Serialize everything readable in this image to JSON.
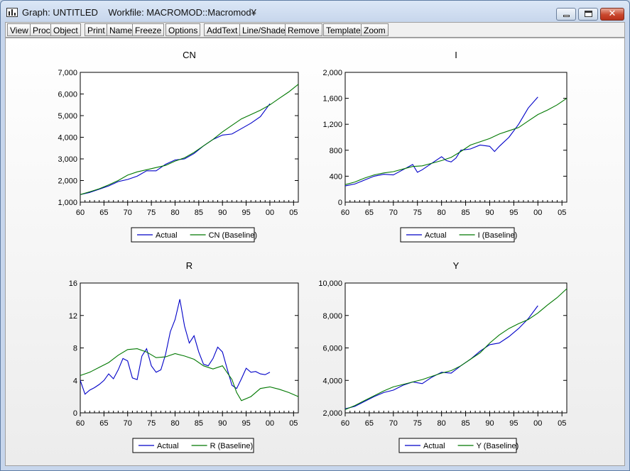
{
  "window": {
    "title": "Graph: UNTITLED    Workfile: MACROMOD::Macromod¥"
  },
  "toolbar": {
    "buttons": [
      "View",
      "Proc",
      "Object",
      "Print",
      "Name",
      "Freeze",
      "Options",
      "AddText",
      "Line/Shade",
      "Remove",
      "Template",
      "Zoom"
    ]
  },
  "colors": {
    "actual": "#0000c8",
    "baseline": "#007800"
  },
  "chart_data": [
    {
      "type": "line",
      "title": "CN",
      "ylim": [
        1000,
        7000
      ],
      "yticks": [
        "1,000",
        "2,000",
        "3,000",
        "4,000",
        "5,000",
        "6,000",
        "7,000"
      ],
      "xlim": [
        1960,
        2006
      ],
      "xticks": [
        "60",
        "65",
        "70",
        "75",
        "80",
        "85",
        "90",
        "95",
        "00",
        "05"
      ],
      "legend_position": "bottom",
      "grid": false,
      "series": [
        {
          "name": "Actual",
          "x": [
            1960,
            1962,
            1964,
            1966,
            1968,
            1970,
            1972,
            1974,
            1976,
            1978,
            1980,
            1982,
            1984,
            1986,
            1988,
            1990,
            1992,
            1994,
            1996,
            1998,
            2000
          ],
          "y": [
            1350,
            1450,
            1600,
            1750,
            1950,
            2050,
            2200,
            2450,
            2450,
            2750,
            2950,
            3000,
            3250,
            3600,
            3900,
            4100,
            4150,
            4400,
            4650,
            4950,
            5550
          ]
        },
        {
          "name": "CN (Baseline)",
          "x": [
            1960,
            1962,
            1964,
            1966,
            1968,
            1970,
            1972,
            1974,
            1976,
            1978,
            1980,
            1982,
            1984,
            1986,
            1988,
            1990,
            1992,
            1994,
            1996,
            1998,
            2000,
            2002,
            2004,
            2006
          ],
          "y": [
            1350,
            1480,
            1620,
            1800,
            2000,
            2250,
            2400,
            2500,
            2600,
            2700,
            2900,
            3050,
            3300,
            3600,
            3900,
            4250,
            4550,
            4850,
            5050,
            5250,
            5500,
            5800,
            6100,
            6450
          ]
        }
      ]
    },
    {
      "type": "line",
      "title": "I",
      "ylim": [
        0,
        2000
      ],
      "yticks": [
        "0",
        "400",
        "800",
        "1,200",
        "1,600",
        "2,000"
      ],
      "xlim": [
        1960,
        2006
      ],
      "xticks": [
        "60",
        "65",
        "70",
        "75",
        "80",
        "85",
        "90",
        "95",
        "00",
        "05"
      ],
      "legend_position": "bottom",
      "grid": false,
      "series": [
        {
          "name": "Actual",
          "x": [
            1960,
            1962,
            1964,
            1966,
            1968,
            1970,
            1972,
            1974,
            1975,
            1976,
            1978,
            1980,
            1981,
            1982,
            1983,
            1984,
            1986,
            1988,
            1990,
            1991,
            1992,
            1994,
            1996,
            1998,
            2000
          ],
          "y": [
            250,
            280,
            340,
            400,
            430,
            420,
            500,
            580,
            460,
            500,
            600,
            700,
            640,
            620,
            680,
            800,
            820,
            880,
            860,
            780,
            860,
            1000,
            1200,
            1450,
            1620
          ]
        },
        {
          "name": "I (Baseline)",
          "x": [
            1960,
            1962,
            1964,
            1966,
            1968,
            1970,
            1972,
            1974,
            1976,
            1978,
            1980,
            1982,
            1984,
            1986,
            1988,
            1990,
            1992,
            1994,
            1996,
            1998,
            2000,
            2002,
            2004,
            2006
          ],
          "y": [
            270,
            310,
            370,
            420,
            450,
            470,
            510,
            550,
            560,
            600,
            640,
            690,
            780,
            880,
            930,
            980,
            1050,
            1100,
            1150,
            1250,
            1350,
            1420,
            1500,
            1600
          ]
        }
      ]
    },
    {
      "type": "line",
      "title": "R",
      "ylim": [
        0,
        16
      ],
      "yticks": [
        "0",
        "4",
        "8",
        "12",
        "16"
      ],
      "xlim": [
        1960,
        2006
      ],
      "xticks": [
        "60",
        "65",
        "70",
        "75",
        "80",
        "85",
        "90",
        "95",
        "00",
        "05"
      ],
      "legend_position": "bottom",
      "grid": false,
      "series": [
        {
          "name": "Actual",
          "x": [
            1960,
            1961,
            1962,
            1963,
            1964,
            1965,
            1966,
            1967,
            1968,
            1969,
            1970,
            1971,
            1972,
            1973,
            1974,
            1975,
            1976,
            1977,
            1978,
            1979,
            1980,
            1981,
            1982,
            1983,
            1984,
            1985,
            1986,
            1987,
            1988,
            1989,
            1990,
            1991,
            1992,
            1993,
            1994,
            1995,
            1996,
            1997,
            1998,
            1999,
            2000
          ],
          "y": [
            4.0,
            2.3,
            2.8,
            3.1,
            3.5,
            4.0,
            4.8,
            4.2,
            5.3,
            6.7,
            6.4,
            4.3,
            4.1,
            7.0,
            7.9,
            5.8,
            5.0,
            5.3,
            7.2,
            10.0,
            11.5,
            14.0,
            10.7,
            8.6,
            9.5,
            7.5,
            6.0,
            5.8,
            6.7,
            8.1,
            7.5,
            5.4,
            3.4,
            3.0,
            4.2,
            5.5,
            5.0,
            5.1,
            4.8,
            4.7,
            5.0
          ]
        },
        {
          "name": "R (Baseline)",
          "x": [
            1960,
            1962,
            1964,
            1966,
            1968,
            1970,
            1972,
            1974,
            1976,
            1978,
            1980,
            1982,
            1984,
            1986,
            1988,
            1990,
            1992,
            1993,
            1994,
            1996,
            1998,
            2000,
            2002,
            2004,
            2006
          ],
          "y": [
            4.6,
            5.0,
            5.6,
            6.2,
            7.1,
            7.8,
            7.9,
            7.5,
            6.8,
            6.9,
            7.3,
            7.0,
            6.6,
            5.8,
            5.4,
            5.8,
            4.1,
            2.5,
            1.5,
            2.0,
            3.0,
            3.2,
            2.9,
            2.5,
            2.0
          ]
        }
      ]
    },
    {
      "type": "line",
      "title": "Y",
      "ylim": [
        2000,
        10000
      ],
      "yticks": [
        "2,000",
        "4,000",
        "6,000",
        "8,000",
        "10,000"
      ],
      "xlim": [
        1960,
        2006
      ],
      "xticks": [
        "60",
        "65",
        "70",
        "75",
        "80",
        "85",
        "90",
        "95",
        "00",
        "05"
      ],
      "legend_position": "bottom",
      "grid": false,
      "series": [
        {
          "name": "Actual",
          "x": [
            1960,
            1962,
            1964,
            1966,
            1968,
            1970,
            1972,
            1974,
            1976,
            1978,
            1980,
            1982,
            1984,
            1986,
            1988,
            1990,
            1992,
            1994,
            1996,
            1998,
            2000
          ],
          "y": [
            2250,
            2400,
            2700,
            3000,
            3250,
            3400,
            3700,
            3900,
            3800,
            4200,
            4500,
            4450,
            4900,
            5300,
            5800,
            6200,
            6300,
            6700,
            7200,
            7800,
            8600
          ]
        },
        {
          "name": "Y (Baseline)",
          "x": [
            1960,
            1962,
            1964,
            1966,
            1968,
            1970,
            1972,
            1974,
            1976,
            1978,
            1980,
            1982,
            1984,
            1986,
            1988,
            1990,
            1992,
            1994,
            1996,
            1998,
            2000,
            2002,
            2004,
            2006
          ],
          "y": [
            2200,
            2450,
            2750,
            3050,
            3350,
            3600,
            3750,
            3900,
            4050,
            4250,
            4450,
            4600,
            4900,
            5300,
            5700,
            6300,
            6800,
            7200,
            7500,
            7750,
            8150,
            8650,
            9100,
            9650
          ]
        }
      ]
    }
  ]
}
